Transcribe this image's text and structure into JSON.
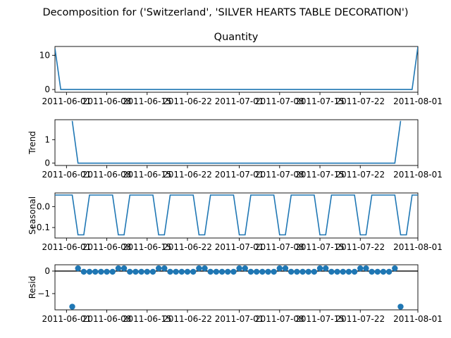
{
  "figure": {
    "suptitle": "Decomposition for ('Switzerland', 'SILVER HEARTS TABLE DECORATION')"
  },
  "colors": {
    "series": "#1f77b4",
    "axis": "#000000"
  },
  "chart_data": [
    {
      "type": "line",
      "title": "Quantity",
      "ylabel": "",
      "x_start": "2011-06-01",
      "x_end": "2011-08-01",
      "xlim": [
        -1,
        62
      ],
      "ylim": [
        -0.8,
        12.6
      ],
      "x_tick_labels": [
        "2011-06-01",
        "2011-06-08",
        "2011-06-15",
        "2011-06-22",
        "2011-07-01",
        "2011-07-08",
        "2011-07-15",
        "2011-07-22",
        "2011-08-01"
      ],
      "y_ticks": [
        0,
        10
      ],
      "y_tick_labels": [
        "0",
        "10"
      ],
      "points": [
        [
          -1,
          12
        ],
        [
          0,
          0
        ],
        [
          61,
          0
        ],
        [
          62,
          12.5
        ]
      ]
    },
    {
      "type": "line",
      "title": "",
      "ylabel": "Trend",
      "xlim": [
        -1,
        62
      ],
      "ylim": [
        -0.1,
        1.85
      ],
      "x_tick_labels": [
        "2011-06-01",
        "2011-06-08",
        "2011-06-15",
        "2011-06-22",
        "2011-07-01",
        "2011-07-08",
        "2011-07-15",
        "2011-07-22",
        "2011-08-01"
      ],
      "y_ticks": [
        0,
        1
      ],
      "y_tick_labels": [
        "0",
        "1"
      ],
      "points": [
        [
          2,
          1.8
        ],
        [
          3,
          0
        ],
        [
          58,
          0
        ],
        [
          59,
          1.8
        ]
      ]
    },
    {
      "type": "line",
      "title": "",
      "ylabel": "Seasonal",
      "xlim": [
        -1,
        62
      ],
      "ylim": [
        -0.15,
        0.065
      ],
      "x_tick_labels": [
        "2011-06-01",
        "2011-06-08",
        "2011-06-15",
        "2011-06-22",
        "2011-07-01",
        "2011-07-08",
        "2011-07-15",
        "2011-07-22",
        "2011-08-01"
      ],
      "y_ticks": [
        0.0,
        -0.1
      ],
      "y_tick_labels": [
        "0.0",
        "−0.1"
      ],
      "period": 7,
      "high": 0.055,
      "low": -0.135,
      "low_days": [
        3,
        4
      ]
    },
    {
      "type": "scatter",
      "title": "",
      "ylabel": "Resid",
      "xlim": [
        -1,
        62
      ],
      "ylim": [
        -1.72,
        0.28
      ],
      "x_tick_labels": [
        "2011-06-01",
        "2011-06-08",
        "2011-06-15",
        "2011-06-22",
        "2011-07-01",
        "2011-07-08",
        "2011-07-15",
        "2011-07-22",
        "2011-08-01"
      ],
      "y_ticks": [
        0,
        -1
      ],
      "y_tick_labels": [
        "0",
        "−1"
      ],
      "zero_line": true,
      "points": [
        [
          2,
          -1.58
        ],
        [
          3,
          0.12
        ],
        [
          4,
          -0.03
        ],
        [
          5,
          -0.03
        ],
        [
          6,
          -0.03
        ],
        [
          7,
          -0.03
        ],
        [
          8,
          -0.03
        ],
        [
          9,
          -0.03
        ],
        [
          10,
          0.12
        ],
        [
          11,
          0.12
        ],
        [
          12,
          -0.03
        ],
        [
          13,
          -0.03
        ],
        [
          14,
          -0.03
        ],
        [
          15,
          -0.03
        ],
        [
          16,
          -0.03
        ],
        [
          17,
          0.12
        ],
        [
          18,
          0.12
        ],
        [
          19,
          -0.03
        ],
        [
          20,
          -0.03
        ],
        [
          21,
          -0.03
        ],
        [
          22,
          -0.03
        ],
        [
          23,
          -0.03
        ],
        [
          24,
          0.12
        ],
        [
          25,
          0.12
        ],
        [
          26,
          -0.03
        ],
        [
          27,
          -0.03
        ],
        [
          28,
          -0.03
        ],
        [
          29,
          -0.03
        ],
        [
          30,
          -0.03
        ],
        [
          31,
          0.12
        ],
        [
          32,
          0.12
        ],
        [
          33,
          -0.03
        ],
        [
          34,
          -0.03
        ],
        [
          35,
          -0.03
        ],
        [
          36,
          -0.03
        ],
        [
          37,
          -0.03
        ],
        [
          38,
          0.12
        ],
        [
          39,
          0.12
        ],
        [
          40,
          -0.03
        ],
        [
          41,
          -0.03
        ],
        [
          42,
          -0.03
        ],
        [
          43,
          -0.03
        ],
        [
          44,
          -0.03
        ],
        [
          45,
          0.12
        ],
        [
          46,
          0.12
        ],
        [
          47,
          -0.03
        ],
        [
          48,
          -0.03
        ],
        [
          49,
          -0.03
        ],
        [
          50,
          -0.03
        ],
        [
          51,
          -0.03
        ],
        [
          52,
          0.12
        ],
        [
          53,
          0.12
        ],
        [
          54,
          -0.03
        ],
        [
          55,
          -0.03
        ],
        [
          56,
          -0.03
        ],
        [
          57,
          -0.03
        ],
        [
          58,
          0.12
        ],
        [
          59,
          -1.58
        ]
      ]
    }
  ]
}
